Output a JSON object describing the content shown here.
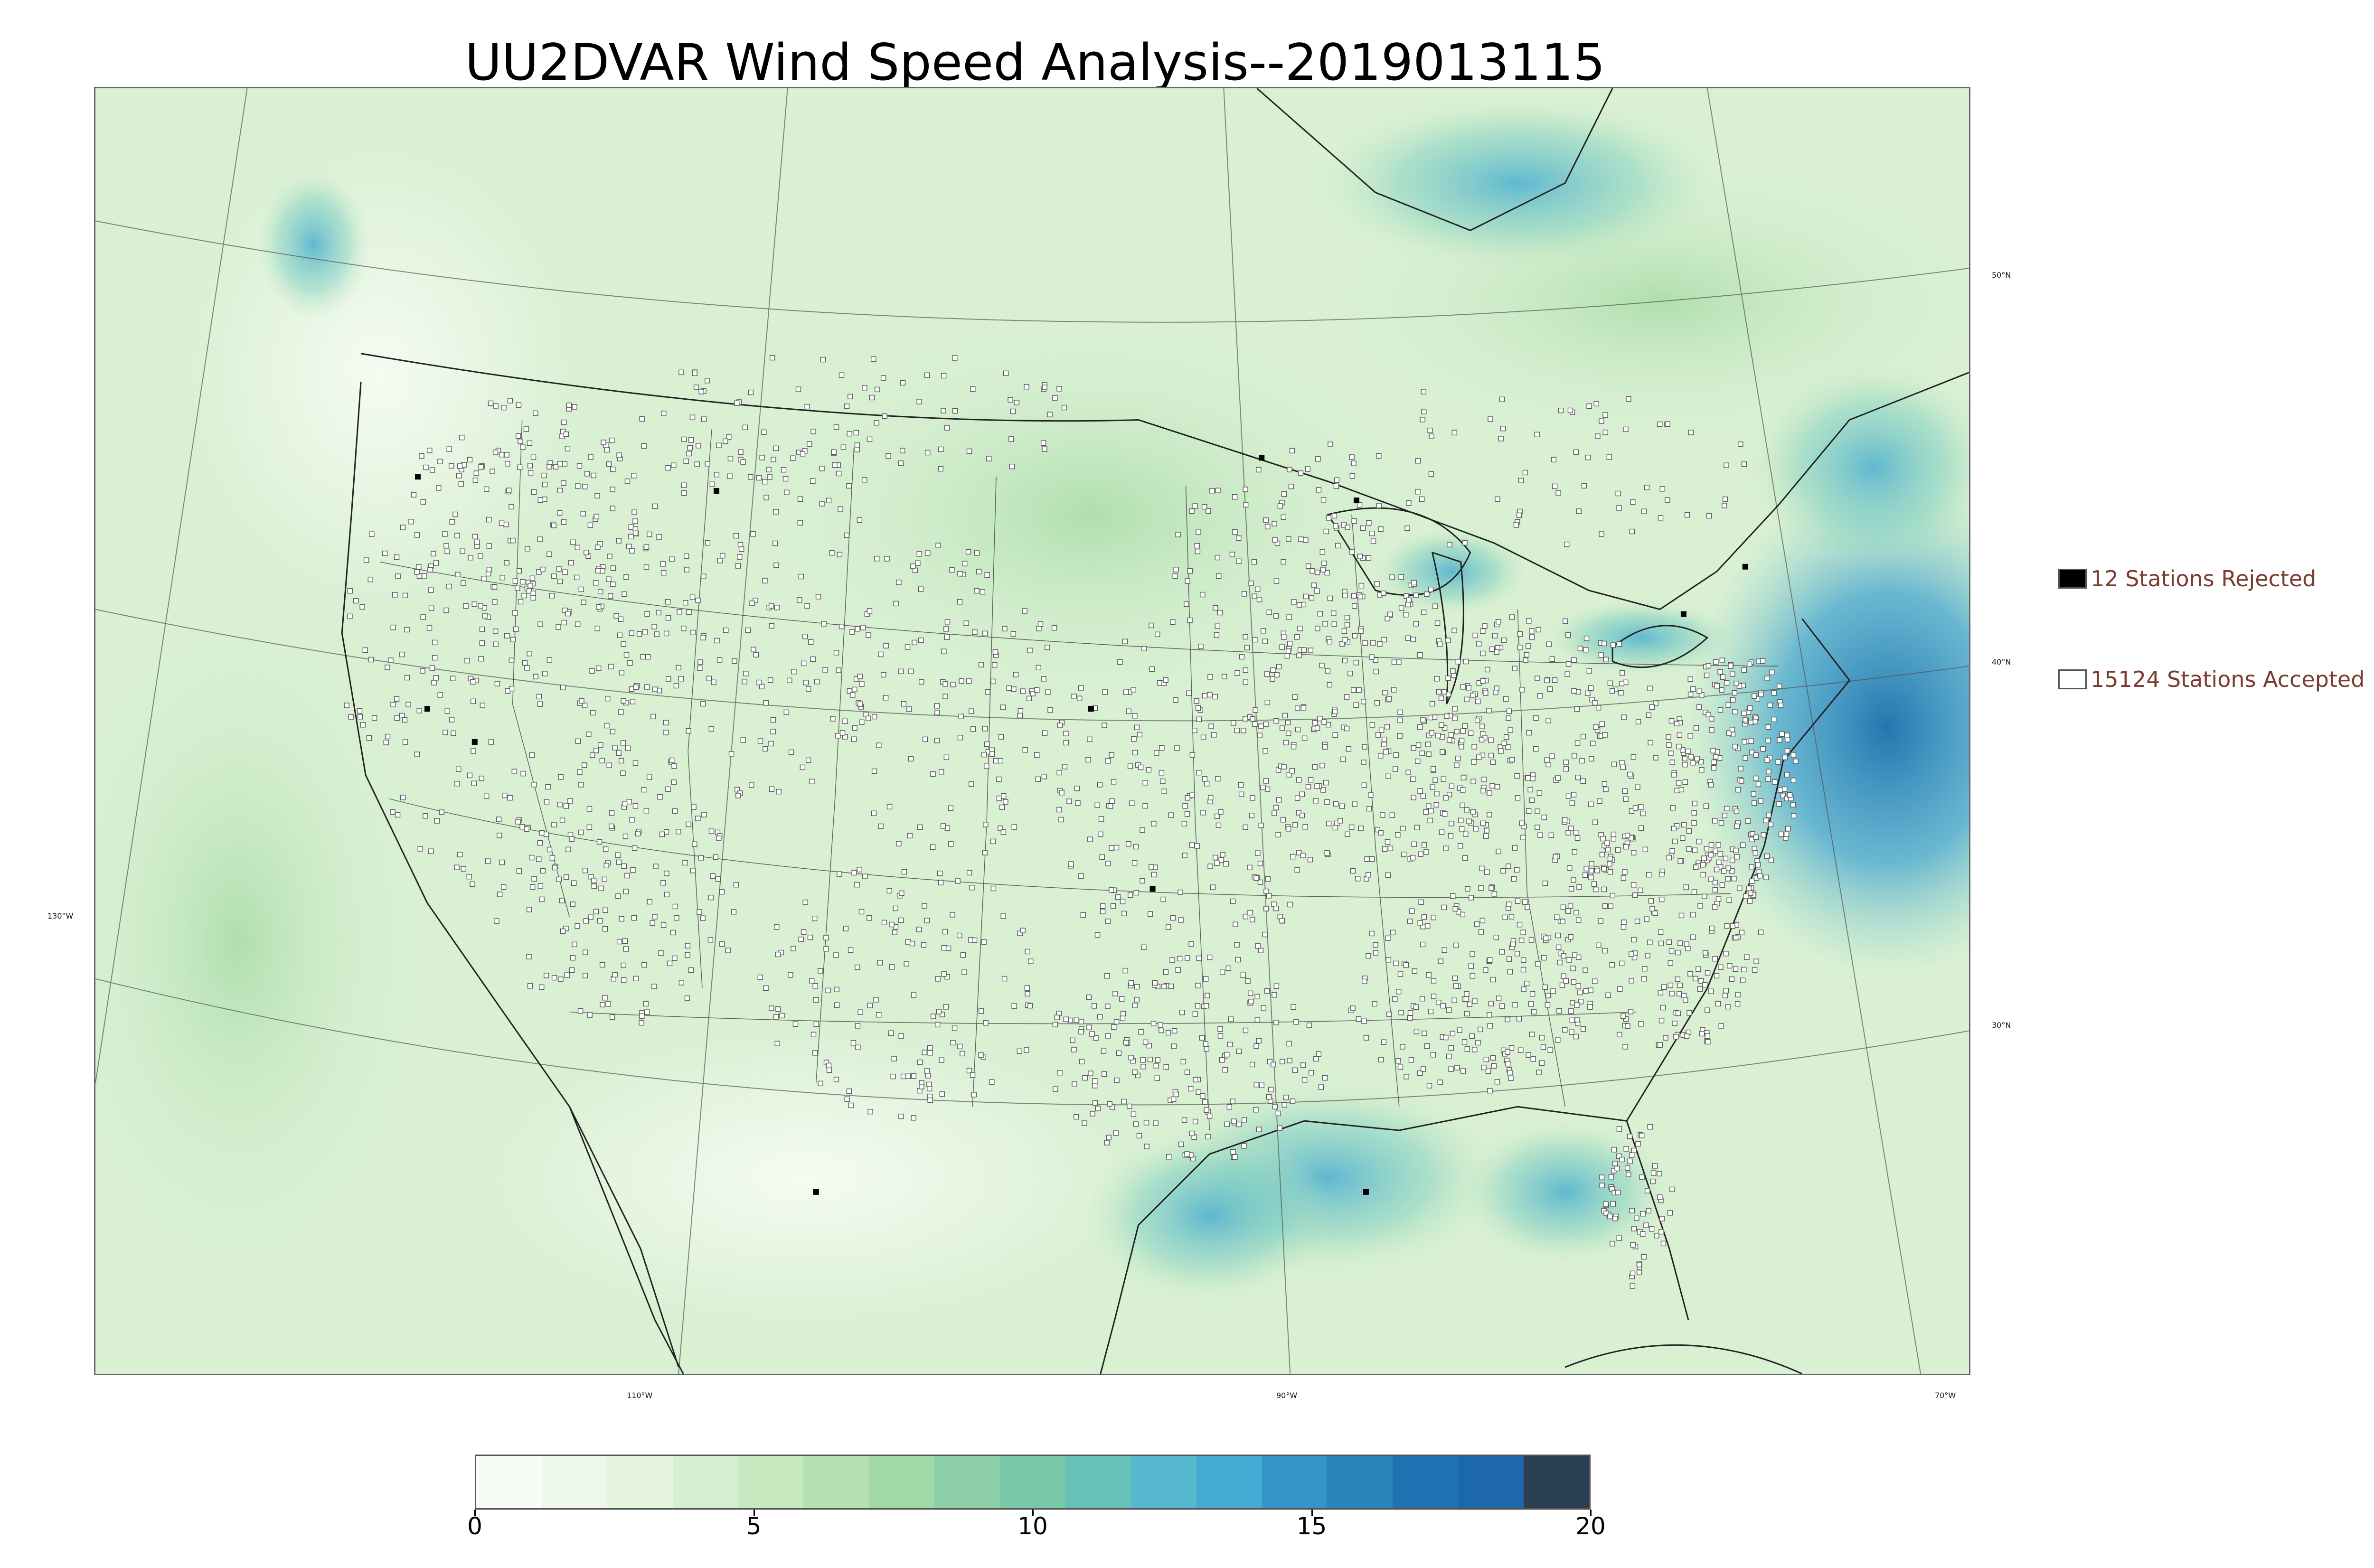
{
  "title": "UU2DVAR Wind Speed Analysis--2019013115",
  "map": {
    "projection_labels": {
      "longitudes": [
        "130°W",
        "110°W",
        "90°W",
        "70°W"
      ],
      "latitudes": [
        "50°N",
        "40°N",
        "30°N"
      ]
    },
    "field": "wind-speed",
    "palette_low": "#f2fbee",
    "palette_high": "#1a6fae"
  },
  "legend": {
    "rejected": {
      "label": "12 Stations Rejected",
      "swatch_color": "#000000",
      "count": 12
    },
    "accepted": {
      "label": "15124 Stations Accepted",
      "swatch_color": "#ffffff",
      "count": 15124
    }
  },
  "colorbar": {
    "min": 0,
    "max": 20,
    "ticks": [
      "0",
      "5",
      "10",
      "15",
      "20"
    ],
    "colors": [
      "#f7fcf5",
      "#eef8ea",
      "#e5f5e0",
      "#d6efd0",
      "#c7e9c0",
      "#b4e0b2",
      "#a1d9a6",
      "#8dd0a8",
      "#79c8aa",
      "#66c2b8",
      "#55b8cf",
      "#44aad3",
      "#3496c8",
      "#2a85bd",
      "#2172b3",
      "#1d68aa",
      "#2b3f52"
    ]
  }
}
